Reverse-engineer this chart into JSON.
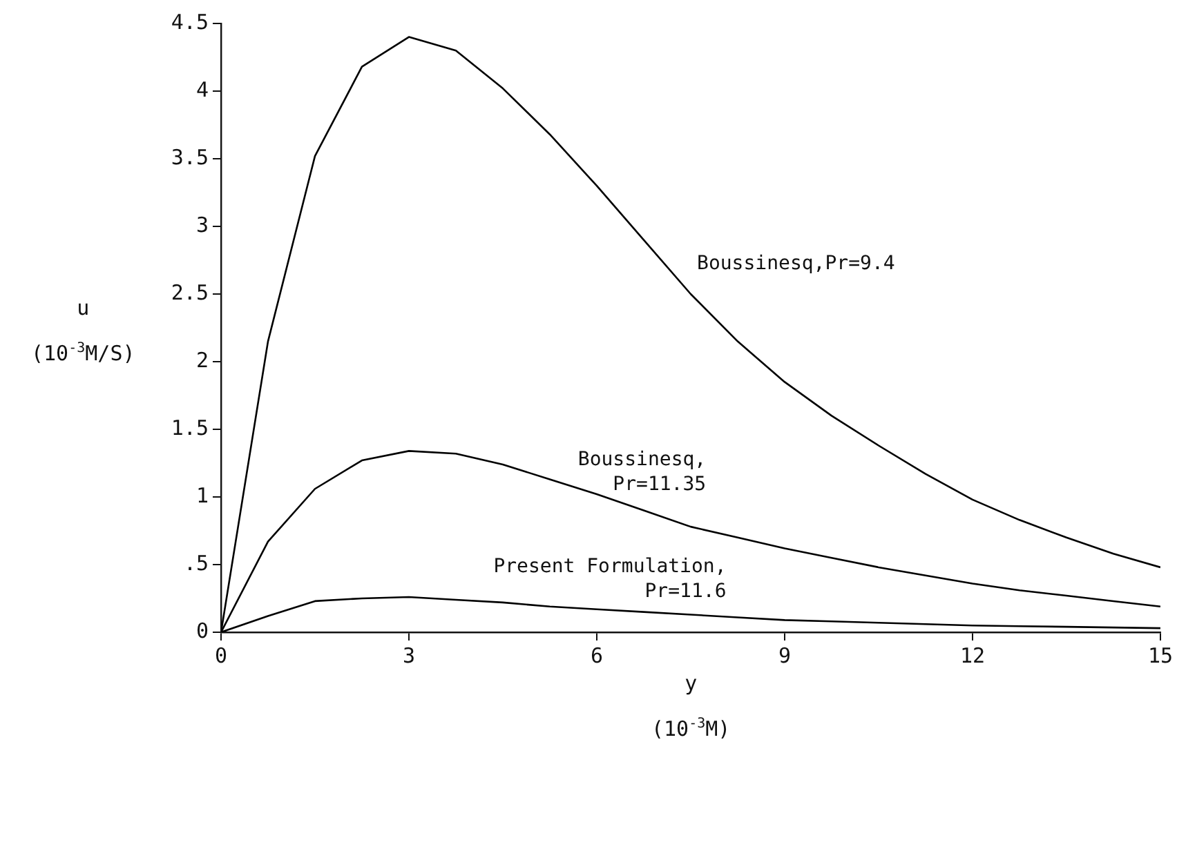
{
  "chart_data": {
    "type": "line",
    "xlabel": "y\n(10$^{-3}$M)",
    "ylabel": "u\n(10$^{-3}$M/S)",
    "x": [
      0,
      0.75,
      1.5,
      2.25,
      3,
      3.75,
      4.5,
      5.25,
      6,
      6.75,
      7.5,
      8.25,
      9,
      9.75,
      10.5,
      11.25,
      12,
      12.75,
      13.5,
      14.25,
      15
    ],
    "series": [
      {
        "name": "Boussinesq,Pr=9.4",
        "color": "#000000",
        "values": [
          0,
          2.15,
          3.52,
          4.18,
          4.4,
          4.3,
          4.02,
          3.68,
          3.3,
          2.9,
          2.5,
          2.15,
          1.85,
          1.6,
          1.38,
          1.17,
          0.98,
          0.83,
          0.7,
          0.58,
          0.48
        ]
      },
      {
        "name": "Boussinesq,\nPr=11.35",
        "color": "#000000",
        "values": [
          0,
          0.67,
          1.06,
          1.27,
          1.34,
          1.32,
          1.24,
          1.13,
          1.02,
          0.9,
          0.78,
          0.7,
          0.62,
          0.55,
          0.48,
          0.42,
          0.36,
          0.31,
          0.27,
          0.23,
          0.19
        ]
      },
      {
        "name": "Present Formulation,\nPr=11.6",
        "color": "#000000",
        "values": [
          0,
          0.12,
          0.23,
          0.25,
          0.26,
          0.24,
          0.22,
          0.19,
          0.17,
          0.15,
          0.13,
          0.11,
          0.09,
          0.08,
          0.07,
          0.06,
          0.05,
          0.045,
          0.04,
          0.035,
          0.03
        ]
      }
    ],
    "xlim": [
      0,
      15
    ],
    "xticks": [
      0,
      3,
      6,
      9,
      12,
      15
    ],
    "ylim": [
      0,
      4.5
    ],
    "yticks": [
      0,
      {
        "value": 0.5,
        "label": ".5"
      },
      1,
      1.5,
      2,
      2.5,
      3,
      3.5,
      4,
      4.5
    ],
    "grid": false,
    "legend": false,
    "marker": "none",
    "line_style": "solid"
  }
}
